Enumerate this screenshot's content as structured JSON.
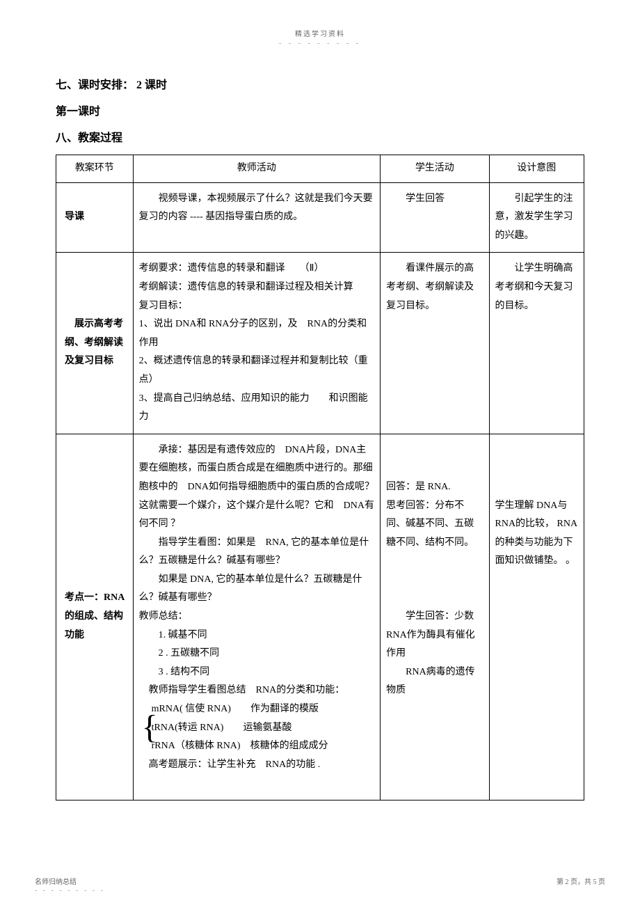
{
  "header": {
    "title": "精选学习资料",
    "dots": "- - - - - - - - -"
  },
  "sections": {
    "s7": "七、课时安排： 2 课时",
    "s7_sub": "第一课时",
    "s8": "八、教案过程"
  },
  "table": {
    "headers": {
      "stage": "教案环节",
      "teacher": "教师活动",
      "student": "学生活动",
      "design": "设计意图"
    },
    "rows": [
      {
        "stage": "导课",
        "teacher_lines": [
          "　　视频导课，本视频展示了什么？这就是我们今天要复习的内容 ---- 基因指导蛋白质的成。"
        ],
        "student": "　　学生回答",
        "design": "　　引起学生的注意，激发学生学习的兴趣。"
      },
      {
        "stage": "　展示高考考纲、考纲解读及复习目标",
        "teacher_lines": [
          "考纲要求：遗传信息的转录和翻译　　（Ⅱ）",
          "考纲解读：遗传信息的转录和翻译过程及相关计算",
          "复习目标：",
          "1、说出 DNA和 RNA分子的区别，及　RNA的分类和作用",
          "2、概述遗传信息的转录和翻译过程并和复制比较（重点）",
          "3、提高自己归纳总结、应用知识的能力　　和识图能力"
        ],
        "student": "　　看课件展示的高考考纲、考纲解读及复习目标。",
        "design": "　　让学生明确高考考纲和今天复习的目标。"
      },
      {
        "stage": "考点一：RNA的组成、结构功能",
        "teacher_lines": [
          "　　承接：基因是有遗传效应的　DNA片段，DNA主要在细胞核，而蛋白质合成是在细胞质中进行的。那细胞核中的　DNA如何指导细胞质中的蛋白质的合成呢？这就需要一个媒介，这个媒介是什么呢？它和　DNA有何不同 ？",
          "　　指导学生看图：如果是　RNA, 它的基本单位是什么？五碳糖是什么？碱基有哪些？",
          "　　如果是 DNA, 它的基本单位是什么？五碳糖是什么？碱基有哪些？",
          "教师总结：",
          "　　1. 碱基不同",
          "　　2 . 五碳糖不同",
          "　　3 . 结构不同",
          "　教师指导学生看图总结　RNA的分类和功能："
        ],
        "teacher_brace": [
          "mRNA( 信使 RNA)　　作为翻译的模版",
          "tRNA(转运 RNA)　　运输氨基酸",
          "rRNA（核糖体 RNA)　核糖体的组成成分"
        ],
        "teacher_after_brace": "　高考题展示：让学生补充　RNA的功能 .",
        "student_lines": [
          "回答：是 RNA.",
          "思考回答：分布不同、碱基不同、五碳糖不同、结构不同。",
          "",
          "",
          "　　学生回答：少数 RNA作为酶具有催化作用",
          "　　RNA病毒的遗传物质"
        ],
        "design": "学生理解 DNA与RNA的比较， RNA的种类与功能为下面知识做铺垫。\n。"
      }
    ]
  },
  "footer": {
    "left": "名师归纳总结",
    "dots": "- - - - - - - - -",
    "right": "第 2 页，共 5 页"
  }
}
